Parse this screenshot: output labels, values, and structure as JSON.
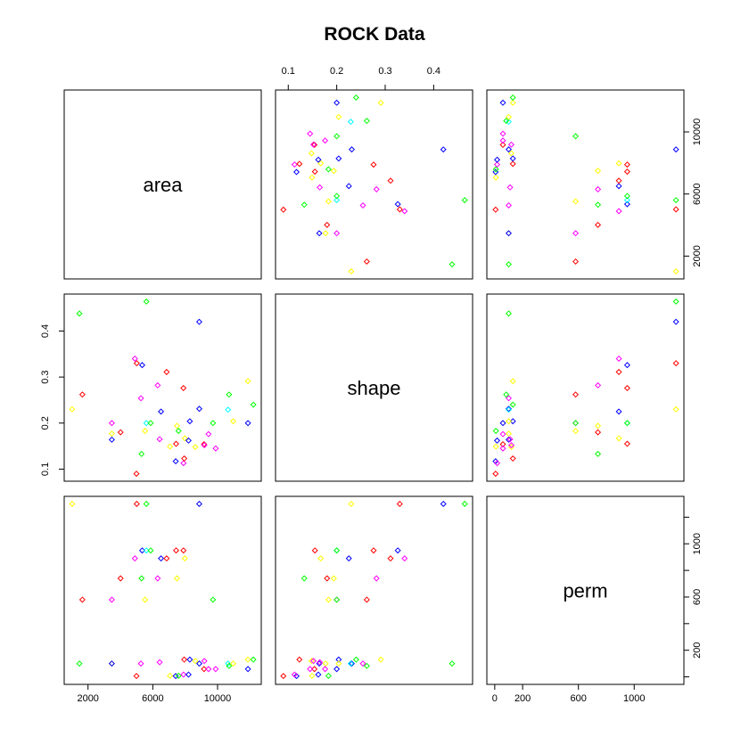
{
  "chart_data": {
    "type": "scatter",
    "title": "ROCK Data",
    "variables": [
      {
        "name": "area",
        "range": [
          1016,
          12212
        ],
        "ticks": [
          2000,
          6000,
          10000
        ]
      },
      {
        "name": "shape",
        "range": [
          0.09,
          0.464
        ],
        "ticks": [
          0.1,
          0.2,
          0.3,
          0.4
        ]
      },
      {
        "name": "perm",
        "range": [
          0,
          1300
        ],
        "ticks": [
          0,
          200,
          600,
          1000
        ]
      }
    ],
    "extra_tick_labels": {
      "perm_right": [
        200,
        600,
        1000
      ]
    },
    "grid": false,
    "legend": "none",
    "palette": [
      "#ff0000",
      "#ffff00",
      "#00ff00",
      "#00ffff",
      "#0000ff",
      "#ff00ff"
    ],
    "points": [
      {
        "area": 1016,
        "shape": 0.23,
        "perm": 1300,
        "color": "#ffff00"
      },
      {
        "area": 1468,
        "shape": 0.438,
        "perm": 100,
        "color": "#00ff00"
      },
      {
        "area": 1651,
        "shape": 0.262,
        "perm": 580,
        "color": "#ff0000"
      },
      {
        "area": 3469,
        "shape": 0.177,
        "perm": 100,
        "color": "#ffff00"
      },
      {
        "area": 3469,
        "shape": 0.164,
        "perm": 100,
        "color": "#0000ff"
      },
      {
        "area": 3469,
        "shape": 0.2,
        "perm": 580,
        "color": "#ff00ff"
      },
      {
        "area": 4010,
        "shape": 0.18,
        "perm": 740,
        "color": "#ff0000"
      },
      {
        "area": 4894,
        "shape": 0.34,
        "perm": 890,
        "color": "#ff00ff"
      },
      {
        "area": 4990,
        "shape": 0.09,
        "perm": 6.3,
        "color": "#ff0000"
      },
      {
        "area": 5010,
        "shape": 0.33,
        "perm": 1300,
        "color": "#ff0000"
      },
      {
        "area": 5267,
        "shape": 0.254,
        "perm": 100,
        "color": "#ff00ff"
      },
      {
        "area": 5305,
        "shape": 0.133,
        "perm": 740,
        "color": "#00ff00"
      },
      {
        "area": 5345,
        "shape": 0.326,
        "perm": 950,
        "color": "#0000ff"
      },
      {
        "area": 5522,
        "shape": 0.183,
        "perm": 580,
        "color": "#ffff00"
      },
      {
        "area": 5605,
        "shape": 0.464,
        "perm": 1300,
        "color": "#00ff00"
      },
      {
        "area": 5605,
        "shape": 0.2,
        "perm": 950,
        "color": "#00ffff"
      },
      {
        "area": 5868,
        "shape": 0.2,
        "perm": 950,
        "color": "#00ff00"
      },
      {
        "area": 6302,
        "shape": 0.282,
        "perm": 740,
        "color": "#ff00ff"
      },
      {
        "area": 6425,
        "shape": 0.165,
        "perm": 110,
        "color": "#ff00ff"
      },
      {
        "area": 6509,
        "shape": 0.225,
        "perm": 890,
        "color": "#0000ff"
      },
      {
        "area": 6855,
        "shape": 0.311,
        "perm": 890,
        "color": "#ff0000"
      },
      {
        "area": 7062,
        "shape": 0.149,
        "perm": 8.3,
        "color": "#ffff00"
      },
      {
        "area": 7416,
        "shape": 0.117,
        "perm": 6.3,
        "color": "#0000ff"
      },
      {
        "area": 7440,
        "shape": 0.155,
        "perm": 950,
        "color": "#ff0000"
      },
      {
        "area": 7493,
        "shape": 0.194,
        "perm": 740,
        "color": "#ffff00"
      },
      {
        "area": 7589,
        "shape": 0.183,
        "perm": 8.3,
        "color": "#00ff00"
      },
      {
        "area": 7894,
        "shape": 0.276,
        "perm": 950,
        "color": "#ff0000"
      },
      {
        "area": 7898,
        "shape": 0.113,
        "perm": 17.1,
        "color": "#ff00ff"
      },
      {
        "area": 7943,
        "shape": 0.123,
        "perm": 130,
        "color": "#ff0000"
      },
      {
        "area": 7979,
        "shape": 0.167,
        "perm": 890,
        "color": "#ffff00"
      },
      {
        "area": 8209,
        "shape": 0.162,
        "perm": 17.1,
        "color": "#0000ff"
      },
      {
        "area": 8286,
        "shape": 0.204,
        "perm": 130,
        "color": "#0000ff"
      },
      {
        "area": 8624,
        "shape": 0.148,
        "perm": 119,
        "color": "#ffff00"
      },
      {
        "area": 8869,
        "shape": 0.42,
        "perm": 1300,
        "color": "#0000ff"
      },
      {
        "area": 8871,
        "shape": 0.231,
        "perm": 100,
        "color": "#0000ff"
      },
      {
        "area": 9167,
        "shape": 0.154,
        "perm": 58.6,
        "color": "#ff0000"
      },
      {
        "area": 9184,
        "shape": 0.152,
        "perm": 119,
        "color": "#ff00ff"
      },
      {
        "area": 9442,
        "shape": 0.176,
        "perm": 58.6,
        "color": "#ff00ff"
      },
      {
        "area": 9718,
        "shape": 0.2,
        "perm": 580,
        "color": "#00ff00"
      },
      {
        "area": 9885,
        "shape": 0.145,
        "perm": 58.6,
        "color": "#ff00ff"
      },
      {
        "area": 10651,
        "shape": 0.229,
        "perm": 100,
        "color": "#00ffff"
      },
      {
        "area": 10711,
        "shape": 0.262,
        "perm": 82.4,
        "color": "#00ff00"
      },
      {
        "area": 10965,
        "shape": 0.204,
        "perm": 100,
        "color": "#ffff00"
      },
      {
        "area": 11876,
        "shape": 0.291,
        "perm": 130,
        "color": "#ffff00"
      },
      {
        "area": 11878,
        "shape": 0.2,
        "perm": 58.6,
        "color": "#0000ff"
      },
      {
        "area": 12212,
        "shape": 0.24,
        "perm": 130,
        "color": "#00ff00"
      }
    ]
  }
}
